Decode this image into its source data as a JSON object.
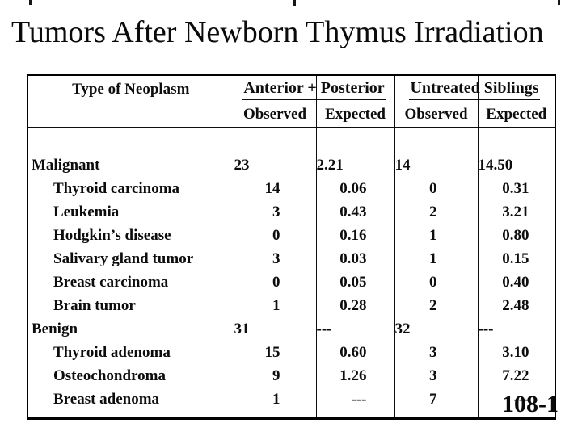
{
  "title": "Tumors After Newborn Thymus Irradiation",
  "slide_number": "108-1",
  "colors": {
    "background": "#ffffff",
    "text": "#0d0d0d",
    "border": "#000000"
  },
  "table": {
    "corner_header": "Type of Neoplasm",
    "group_headers": [
      {
        "label": "Anterior + Posterior"
      },
      {
        "label": "Untreated Siblings"
      }
    ],
    "sub_headers": [
      "Observed",
      "Expected",
      "Observed",
      "Expected"
    ],
    "rows": [
      {
        "label": "Malignant",
        "level": "group",
        "values": [
          "23",
          "2.21",
          "14",
          "14.50"
        ]
      },
      {
        "label": "Thyroid carcinoma",
        "level": "sub",
        "values": [
          "14",
          "0.06",
          "0",
          "0.31"
        ]
      },
      {
        "label": "Leukemia",
        "level": "sub",
        "values": [
          "3",
          "0.43",
          "2",
          "3.21"
        ]
      },
      {
        "label": "Hodgkin’s disease",
        "level": "sub",
        "values": [
          "0",
          "0.16",
          "1",
          "0.80"
        ]
      },
      {
        "label": "Salivary gland tumor",
        "level": "sub",
        "values": [
          "3",
          "0.03",
          "1",
          "0.15"
        ]
      },
      {
        "label": "Breast carcinoma",
        "level": "sub",
        "values": [
          "0",
          "0.05",
          "0",
          "0.40"
        ]
      },
      {
        "label": "Brain tumor",
        "level": "sub",
        "values": [
          "1",
          "0.28",
          "2",
          "2.48"
        ]
      },
      {
        "label": "Benign",
        "level": "group",
        "values": [
          "31",
          "---",
          "32",
          "---"
        ]
      },
      {
        "label": "Thyroid adenoma",
        "level": "sub",
        "values": [
          "15",
          "0.60",
          "3",
          "3.10"
        ]
      },
      {
        "label": "Osteochondroma",
        "level": "sub",
        "values": [
          "9",
          "1.26",
          "3",
          "7.22"
        ]
      },
      {
        "label": "Breast adenoma",
        "level": "sub",
        "values": [
          "1",
          "---",
          "7",
          "---"
        ]
      }
    ]
  }
}
